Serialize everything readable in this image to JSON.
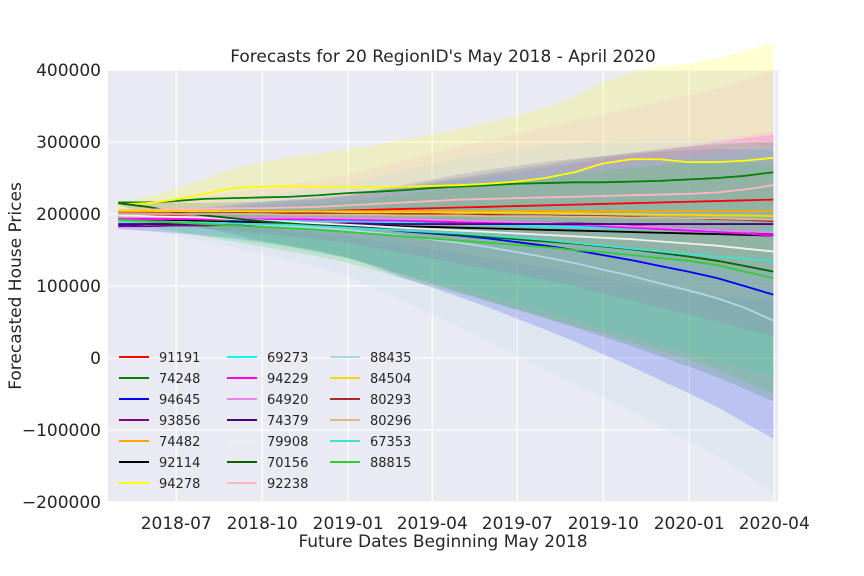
{
  "chart_data": {
    "type": "line",
    "title": "Forecasts for 20 RegionID's May 2018 - April 2020",
    "xlabel": "Future Dates Beginning May 2018",
    "ylabel": "Forecasted House Prices",
    "ylim": [
      -200000,
      400000
    ],
    "xlim": [
      "2018-04-19",
      "2020-04-05"
    ],
    "grid": true,
    "legend_position": "lower-left",
    "x_tick_labels": [
      "2018-07",
      "2018-10",
      "2019-01",
      "2019-04",
      "2019-07",
      "2019-10",
      "2020-01",
      "2020-04"
    ],
    "y_tick_labels": [
      "400000",
      "300000",
      "200000",
      "100000",
      "0",
      "−100000",
      "−200000"
    ],
    "x_ticks": [
      "2018-07-01",
      "2018-10-01",
      "2019-01-01",
      "2019-04-01",
      "2019-07-01",
      "2019-10-01",
      "2020-01-01",
      "2020-04-01"
    ],
    "y_ticks": [
      400000,
      300000,
      200000,
      100000,
      0,
      -100000,
      -200000
    ],
    "x": [
      "2018-04-30",
      "2018-05-31",
      "2018-06-30",
      "2018-07-31",
      "2018-08-31",
      "2018-09-30",
      "2018-10-31",
      "2018-11-30",
      "2018-12-31",
      "2019-01-31",
      "2019-02-28",
      "2019-03-31",
      "2019-04-30",
      "2019-05-31",
      "2019-06-30",
      "2019-07-31",
      "2019-08-31",
      "2019-09-30",
      "2019-10-31",
      "2019-11-30",
      "2019-12-31",
      "2020-01-31",
      "2020-02-29",
      "2020-03-31"
    ],
    "series": [
      {
        "name": "91191",
        "color": "#ff0000",
        "values": [
          197000,
          198000,
          199000,
          200000,
          201000,
          202000,
          203000,
          204000,
          205000,
          206000,
          207000,
          208000,
          209000,
          210000,
          211000,
          212000,
          213000,
          214000,
          215000,
          216000,
          217000,
          218000,
          219000,
          220000
        ],
        "band": [
          500,
          500,
          500,
          500
        ]
      },
      {
        "name": "74248",
        "color": "#008000",
        "values": [
          216000,
          216000,
          218000,
          221000,
          222000,
          223000,
          224000,
          226000,
          229000,
          231000,
          233000,
          236000,
          238000,
          240000,
          242000,
          243000,
          244000,
          244000,
          245000,
          246000,
          248000,
          250000,
          253000,
          258000
        ],
        "band": [
          0,
          0,
          0,
          0
        ]
      },
      {
        "name": "94645",
        "color": "#0000ff",
        "values": [
          184000,
          186000,
          188000,
          189000,
          190000,
          189000,
          188000,
          186000,
          183000,
          180000,
          176000,
          173000,
          170000,
          166000,
          161000,
          156000,
          150000,
          143000,
          136000,
          128000,
          120000,
          111000,
          100000,
          88000
        ],
        "band": [
          5000,
          40000,
          120000,
          200000
        ]
      },
      {
        "name": "93856",
        "color": "#800080",
        "values": [
          183000,
          183000,
          184000,
          184000,
          185000,
          185000,
          186000,
          186000,
          187000,
          187000,
          188000,
          188000,
          189000,
          189000,
          189000,
          188000,
          187000,
          186000,
          184000,
          182000,
          180000,
          178000,
          176000,
          172000
        ],
        "band": [
          0,
          0,
          0,
          0
        ]
      },
      {
        "name": "74482",
        "color": "#ffa500",
        "values": [
          204000,
          204000,
          204000,
          204000,
          204000,
          204000,
          204000,
          204000,
          204000,
          204000,
          204000,
          204000,
          204000,
          204000,
          204000,
          204000,
          204000,
          204000,
          204000,
          204000,
          204000,
          204000,
          204000,
          204000
        ],
        "band": [
          0,
          0,
          0,
          0
        ]
      },
      {
        "name": "92114",
        "color": "#000000",
        "values": [
          192000,
          192000,
          191000,
          190000,
          189000,
          188000,
          187000,
          186000,
          185000,
          184000,
          183000,
          182000,
          181000,
          180000,
          179000,
          178000,
          177000,
          176000,
          175000,
          174000,
          173000,
          172000,
          171000,
          170000
        ],
        "band": [
          0,
          0,
          0,
          0
        ]
      },
      {
        "name": "94278",
        "color": "#ffff00",
        "values": [
          213000,
          215000,
          220000,
          228000,
          236000,
          238000,
          239000,
          238000,
          238000,
          237000,
          238000,
          239000,
          240000,
          242000,
          245000,
          250000,
          258000,
          270000,
          276000,
          276000,
          272000,
          272000,
          274000,
          278000
        ],
        "band": [
          3000,
          50000,
          100000,
          160000
        ]
      },
      {
        "name": "69273",
        "color": "#00ffff",
        "values": [
          198000,
          197000,
          196000,
          195000,
          194000,
          193000,
          192000,
          191000,
          190000,
          189000,
          188000,
          187000,
          186000,
          185000,
          184000,
          183000,
          182000,
          181000,
          180000,
          179000,
          178000,
          177000,
          176000,
          175000
        ],
        "band": [
          0,
          0,
          0,
          0
        ]
      },
      {
        "name": "94229",
        "color": "#ff00ff",
        "values": [
          193000,
          193000,
          193000,
          193000,
          193000,
          193000,
          193000,
          192000,
          192000,
          191000,
          191000,
          190000,
          189000,
          188000,
          187000,
          186000,
          185000,
          183000,
          181000,
          179000,
          177000,
          175000,
          173000,
          170000
        ],
        "band": [
          3000,
          30000,
          80000,
          140000
        ]
      },
      {
        "name": "64920",
        "color": "#ee82ee",
        "values": [
          196000,
          196000,
          196000,
          196000,
          195000,
          195000,
          195000,
          195000,
          194000,
          194000,
          193000,
          192000,
          191000,
          190000,
          189000,
          188000,
          186000,
          185000,
          183000,
          182000,
          180000,
          178000,
          176000,
          174000
        ],
        "band": [
          3000,
          30000,
          80000,
          140000
        ]
      },
      {
        "name": "74379",
        "color": "#4b0082",
        "values": [
          186000,
          186000,
          186000,
          186000,
          186000,
          186000,
          186000,
          186000,
          186000,
          186000,
          186000,
          186000,
          186000,
          186000,
          186000,
          186000,
          186000,
          186000,
          186000,
          186000,
          186000,
          186000,
          186000,
          186000
        ],
        "band": [
          0,
          0,
          0,
          0
        ]
      },
      {
        "name": "79908",
        "color": "#f0f0f0",
        "values": [
          198000,
          197000,
          196000,
          195000,
          193000,
          191000,
          189000,
          187000,
          185000,
          183000,
          181000,
          179000,
          177000,
          175000,
          173000,
          171000,
          169000,
          167000,
          165000,
          162000,
          159000,
          156000,
          152000,
          148000
        ],
        "band": [
          0,
          0,
          0,
          0
        ]
      },
      {
        "name": "70156",
        "color": "#006400",
        "values": [
          215000,
          210000,
          203000,
          198000,
          194000,
          190000,
          187000,
          184000,
          182000,
          180000,
          177000,
          174000,
          171000,
          168000,
          165000,
          162000,
          159000,
          155000,
          151000,
          146000,
          141000,
          135000,
          128000,
          120000
        ],
        "band": [
          3000,
          40000,
          110000,
          180000
        ]
      },
      {
        "name": "92238",
        "color": "#ffb6c1",
        "values": [
          205000,
          206000,
          207000,
          207000,
          208000,
          208000,
          209000,
          210000,
          212000,
          214000,
          216000,
          218000,
          220000,
          221000,
          222000,
          223000,
          224000,
          225000,
          226000,
          227000,
          228000,
          230000,
          234000,
          240000
        ],
        "band": [
          3000,
          40000,
          100000,
          160000
        ]
      },
      {
        "name": "88435",
        "color": "#add8e6",
        "values": [
          190000,
          190000,
          189000,
          188000,
          187000,
          185000,
          183000,
          181000,
          178000,
          174000,
          170000,
          165000,
          160000,
          154000,
          147000,
          140000,
          132000,
          123000,
          114000,
          104000,
          94000,
          83000,
          70000,
          52000
        ],
        "band": [
          5000,
          60000,
          160000,
          240000
        ]
      },
      {
        "name": "84504",
        "color": "#ffd700",
        "values": [
          205000,
          205000,
          204000,
          204000,
          204000,
          203000,
          203000,
          203000,
          203000,
          202000,
          202000,
          202000,
          202000,
          202000,
          202000,
          201000,
          201000,
          200000,
          200000,
          199000,
          199000,
          198000,
          198000,
          197000
        ],
        "band": [
          0,
          0,
          0,
          0
        ]
      },
      {
        "name": "80293",
        "color": "#a52a2a",
        "values": [
          201000,
          201000,
          201000,
          201000,
          201000,
          201000,
          201000,
          201000,
          200000,
          200000,
          200000,
          200000,
          199000,
          199000,
          198000,
          198000,
          197000,
          197000,
          196000,
          195000,
          194000,
          193000,
          192000,
          190000
        ],
        "band": [
          0,
          0,
          0,
          0
        ]
      },
      {
        "name": "80296",
        "color": "#deb887",
        "values": [
          200000,
          200000,
          200000,
          200000,
          200000,
          200000,
          199000,
          199000,
          199000,
          199000,
          198000,
          198000,
          198000,
          197000,
          197000,
          197000,
          196000,
          196000,
          195000,
          195000,
          194000,
          194000,
          193000,
          192000
        ],
        "band": [
          0,
          0,
          0,
          0
        ]
      },
      {
        "name": "67353",
        "color": "#40e0d0",
        "values": [
          190000,
          189000,
          189000,
          188000,
          187000,
          186000,
          185000,
          183000,
          181000,
          179000,
          177000,
          175000,
          173000,
          170000,
          167000,
          164000,
          160000,
          156000,
          152000,
          148000,
          144000,
          141000,
          138000,
          135000
        ],
        "band": [
          3000,
          40000,
          100000,
          160000
        ]
      },
      {
        "name": "88815",
        "color": "#32cd32",
        "values": [
          192000,
          190000,
          188000,
          186000,
          184000,
          182000,
          180000,
          178000,
          175000,
          172000,
          169000,
          166000,
          163000,
          160000,
          157000,
          154000,
          150000,
          147000,
          143000,
          139000,
          135000,
          129000,
          120000,
          111000
        ],
        "band": [
          3000,
          40000,
          100000,
          160000
        ]
      }
    ]
  }
}
